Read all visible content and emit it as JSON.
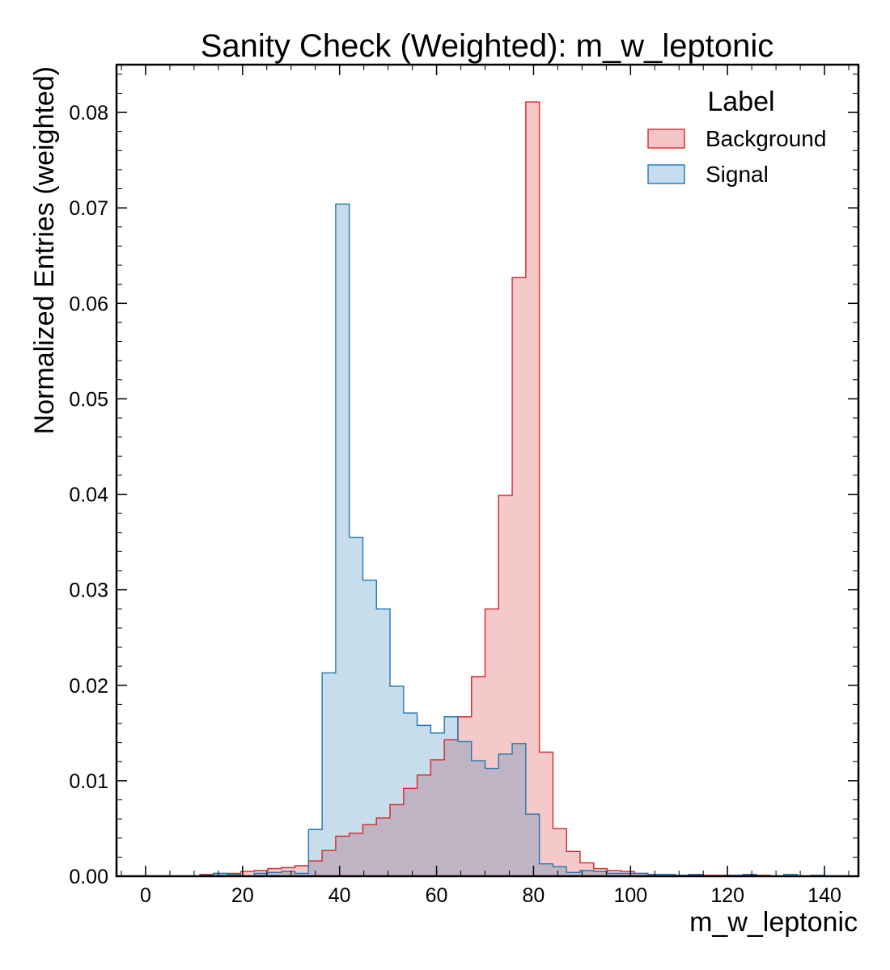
{
  "chart_data": {
    "type": "histogram",
    "title": "Sanity Check (Weighted): m_w_leptonic",
    "xlabel": "m_w_leptonic",
    "ylabel": "Normalized Entries (weighted)",
    "xlim": [
      -6,
      147
    ],
    "ylim": [
      0,
      0.085
    ],
    "xticks": [
      0,
      20,
      40,
      60,
      80,
      100,
      120,
      140
    ],
    "yticks": [
      0,
      0.01,
      0.02,
      0.03,
      0.04,
      0.05,
      0.06,
      0.07,
      0.08
    ],
    "ytick_labels": [
      "0.00",
      "0.01",
      "0.02",
      "0.03",
      "0.04",
      "0.05",
      "0.06",
      "0.07",
      "0.08"
    ],
    "bin_edges": [
      0,
      2.8,
      5.6,
      8.4,
      11.2,
      14,
      16.8,
      19.6,
      22.4,
      25.2,
      28,
      30.8,
      33.6,
      36.4,
      39.2,
      42,
      44.8,
      47.6,
      50.4,
      53.2,
      56,
      58.8,
      61.6,
      64.4,
      67.2,
      70,
      72.8,
      75.6,
      78.4,
      81.2,
      84,
      86.8,
      89.6,
      92.4,
      95.2,
      98,
      100.8,
      103.6,
      106.4,
      109.2,
      112,
      114.8,
      117.6,
      120.4,
      123.2,
      126,
      128.8,
      131.6,
      134.4,
      137.2,
      140
    ],
    "legend": {
      "title": "Label",
      "position": "top-right"
    },
    "grid": false,
    "series": [
      {
        "name": "Background",
        "color": "#d62728",
        "fill": "#f4c5c6",
        "values": [
          0,
          0,
          0,
          0,
          0.0002,
          0.0003,
          0.0003,
          0.0005,
          0.0006,
          0.0008,
          0.0009,
          0.0011,
          0.0016,
          0.0027,
          0.0042,
          0.0045,
          0.0054,
          0.0061,
          0.0075,
          0.0092,
          0.0106,
          0.0122,
          0.0143,
          0.0167,
          0.0209,
          0.028,
          0.0399,
          0.0627,
          0.0811,
          0.013,
          0.005,
          0.0026,
          0.0014,
          0.0008,
          0.0006,
          0.0005,
          0.0003,
          0.0002,
          0.0002,
          0.0001,
          0.0001,
          0.0001,
          0.0001,
          0.0001,
          0.0001,
          0.0001,
          0,
          0,
          0,
          0
        ]
      },
      {
        "name": "Signal",
        "color": "#1f77b4",
        "fill": "#c6dbee",
        "values": [
          0,
          0,
          0,
          0,
          0.0001,
          0.0003,
          0.0002,
          0,
          0.0003,
          0.0004,
          0.0005,
          0.0003,
          0.0049,
          0.0213,
          0.0704,
          0.0355,
          0.031,
          0.028,
          0.0199,
          0.0171,
          0.0158,
          0.015,
          0.0167,
          0.0141,
          0.0121,
          0.0113,
          0.0128,
          0.0139,
          0.0065,
          0.0013,
          0.001,
          0.0004,
          0.0006,
          0.0005,
          0.0003,
          0.0003,
          0.0003,
          0.0002,
          0.0002,
          0.0001,
          0.0002,
          0,
          0,
          0.0001,
          0.0002,
          0,
          0,
          0.0002,
          0,
          0.0001
        ]
      }
    ]
  }
}
